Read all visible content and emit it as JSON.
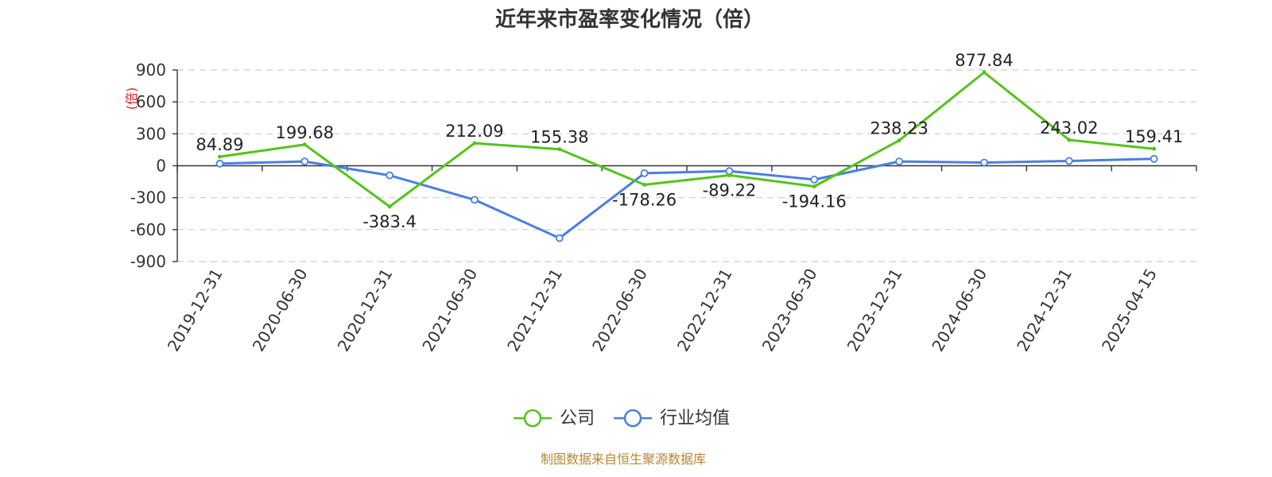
{
  "chart_data": {
    "type": "line",
    "title": "近年来市盈率变化情况（倍）",
    "ylabel": "(倍)",
    "ylim": [
      -900,
      900
    ],
    "yticks": [
      "900",
      "600",
      "300",
      "0",
      "-300",
      "-600",
      "-900"
    ],
    "grid": true,
    "legend_position": "bottom-center",
    "categories": [
      "2019-12-31",
      "2020-06-30",
      "2020-12-31",
      "2021-06-30",
      "2021-12-31",
      "2022-06-30",
      "2022-12-31",
      "2023-06-30",
      "2023-12-31",
      "2024-06-30",
      "2024-12-31",
      "2025-04-15"
    ],
    "series": [
      {
        "name": "公司",
        "color": "#52c41a",
        "values": [
          84.89,
          199.68,
          -383.4,
          212.09,
          155.38,
          -178.26,
          -89.22,
          -194.16,
          238.23,
          877.84,
          243.02,
          159.41
        ],
        "labels": [
          "84.89",
          "199.68",
          "-383.4",
          "212.09",
          "155.38",
          "-178.26",
          "-89.22",
          "-194.16",
          "238.23",
          "877.84",
          "243.02",
          "159.41"
        ]
      },
      {
        "name": "行业均值",
        "color": "#4a7fe0",
        "values": [
          20,
          40,
          -90,
          -320,
          -680,
          -70,
          -50,
          -130,
          40,
          30,
          45,
          65
        ]
      }
    ]
  },
  "footer": {
    "source": "制图数据来自恒生聚源数据库"
  }
}
